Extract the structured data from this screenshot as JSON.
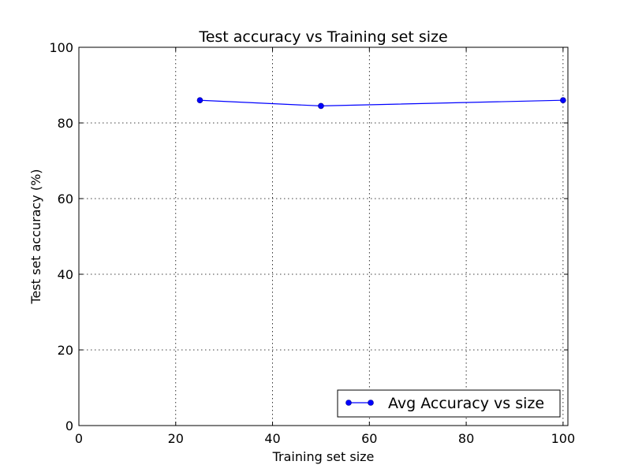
{
  "chart_data": {
    "type": "line",
    "title": "Test accuracy vs Training set size",
    "xlabel": "Training set size",
    "ylabel": "Test set accuracy (%)",
    "xlim": [
      0,
      101
    ],
    "ylim": [
      0,
      100
    ],
    "xticks": [
      0,
      20,
      40,
      60,
      80,
      100
    ],
    "yticks": [
      0,
      20,
      40,
      60,
      80,
      100
    ],
    "grid": true,
    "legend_position": "lower-right",
    "series": [
      {
        "name": "Avg Accuracy vs size",
        "color": "#0000ff",
        "marker": "circle",
        "x": [
          25,
          50,
          100
        ],
        "y": [
          86.0,
          84.5,
          86.0
        ]
      }
    ]
  }
}
